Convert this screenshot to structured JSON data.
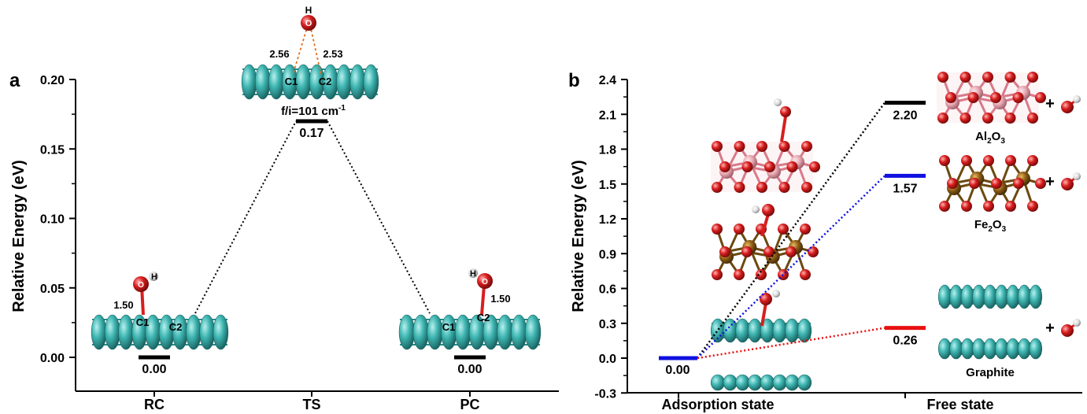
{
  "chart_data": [
    {
      "type": "line",
      "panel_label": "a",
      "ylabel": "Relative Energy (eV)",
      "ylim": [
        -0.0,
        0.2
      ],
      "y_ticks": [
        "0.00",
        "0.05",
        "0.10",
        "0.15",
        "0.20"
      ],
      "categories": [
        "RC",
        "TS",
        "PC"
      ],
      "values": [
        0.0,
        0.17,
        0.0
      ],
      "value_labels": [
        "0.00",
        "0.17",
        "0.00"
      ],
      "annotations": {
        "ts_freq": "f/i=101 cm",
        "ts_freq_sup": "-1",
        "ts_dist_left": "2.56",
        "ts_dist_right": "2.53",
        "rc_dist": "1.50",
        "pc_dist": "1.50",
        "atom_c1": "C1",
        "atom_c2": "C2",
        "atom_o": "O",
        "atom_h": "H"
      }
    },
    {
      "type": "line",
      "panel_label": "b",
      "ylabel": "Relative Energy (eV)",
      "ylim": [
        -0.3,
        2.4
      ],
      "y_ticks": [
        "-0.3",
        "0.0",
        "0.3",
        "0.6",
        "0.9",
        "1.2",
        "1.5",
        "1.8",
        "2.1",
        "2.4"
      ],
      "categories": [
        "Adsorption state",
        "Free state"
      ],
      "series": [
        {
          "name": "Al2O3",
          "name_parts": [
            "Al",
            "2",
            "O",
            "3"
          ],
          "values": [
            0.0,
            2.2
          ],
          "label": "2.20",
          "color": "#000000"
        },
        {
          "name": "Fe2O3",
          "name_parts": [
            "Fe",
            "2",
            "O",
            "3"
          ],
          "values": [
            0.0,
            1.57
          ],
          "label": "1.57",
          "color": "#1010e0"
        },
        {
          "name": "Graphite",
          "values": [
            0.0,
            0.26
          ],
          "label": "0.26",
          "color": "#e81010"
        }
      ],
      "start_label": "0.00",
      "plus_sign": "+"
    }
  ],
  "colors": {
    "carbon": "#3fb6b2",
    "carbon_dark": "#1f7c79",
    "oxygen": "#d81e1e",
    "hydrogen": "#e8e8e8",
    "aluminum": "#e6a6b0",
    "iron": "#8a5a14",
    "blue": "#1010e0",
    "red": "#e81010"
  }
}
